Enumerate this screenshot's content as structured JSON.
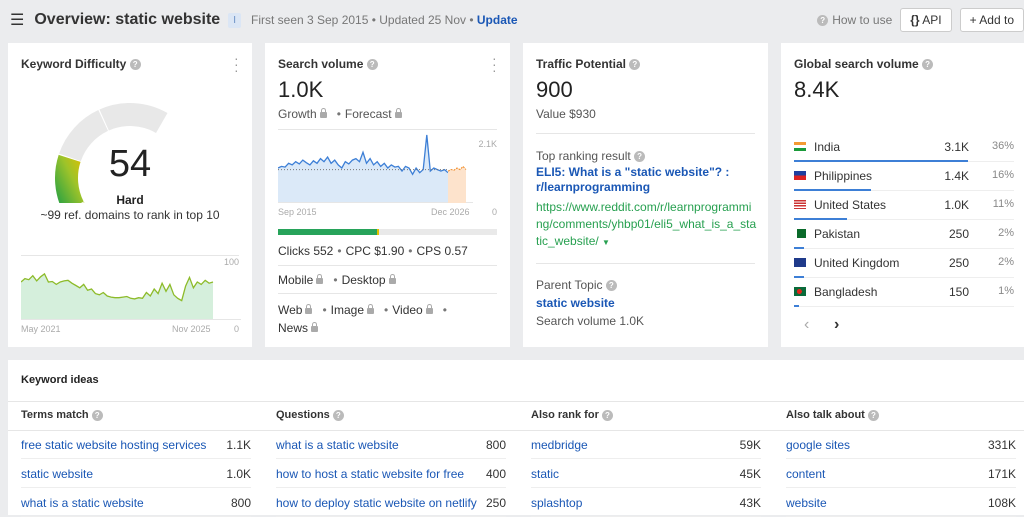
{
  "header": {
    "title": "Overview: static website",
    "badge": "I",
    "first_seen": "First seen 3 Sep 2015",
    "updated": "Updated 25 Nov",
    "update_link": "Update",
    "how_to_use": "How to use",
    "api": "API",
    "add_to": "Add to"
  },
  "kd": {
    "title": "Keyword Difficulty",
    "value": "54",
    "label": "Hard",
    "note": "~99 ref. domains to rank in top 10",
    "score": 54,
    "chart": {
      "type": "area",
      "y_max_label": "100",
      "y_min_label": "0",
      "x_start": "May 2021",
      "x_end": "Nov 2025",
      "ylim": [
        0,
        100
      ],
      "values": [
        62,
        68,
        66,
        73,
        64,
        71,
        76,
        62,
        63,
        58,
        62,
        64,
        65,
        60,
        56,
        52,
        58,
        48,
        50,
        42,
        40,
        44,
        38,
        36,
        35,
        35,
        36,
        37,
        34,
        33,
        35,
        34,
        44,
        38,
        50,
        42,
        60,
        46,
        58,
        40,
        34,
        30,
        55,
        70,
        52,
        62,
        58,
        65,
        60,
        62
      ]
    }
  },
  "sv": {
    "title": "Search volume",
    "value": "1.0K",
    "growth": "Growth",
    "forecast": "Forecast",
    "chart": {
      "type": "area",
      "y_max_label": "2.1K",
      "y_min_label": "0",
      "x_start": "Sep 2015",
      "x_end": "Dec 2026",
      "ylim": [
        0,
        2100
      ],
      "average": 1000,
      "values": [
        1050,
        1100,
        1080,
        1200,
        1150,
        1250,
        1180,
        1300,
        1220,
        1150,
        1280,
        1200,
        1350,
        1250,
        1400,
        1200,
        1300,
        1150,
        1050,
        1250,
        1180,
        1300,
        1350,
        1250,
        1550,
        1200,
        1350,
        1150,
        1250,
        1100,
        1200,
        1050,
        1150,
        1080,
        1100,
        950,
        1100,
        1050,
        850,
        1050,
        900,
        1000,
        2100,
        950,
        1050,
        1000,
        950,
        1000,
        900
      ],
      "forecast_values": [
        950,
        1000,
        980,
        1050,
        1000,
        1100,
        1000
      ]
    },
    "clicks_share": 0.46,
    "clicks": "Clicks 552",
    "cpc": "CPC $1.90",
    "cps": "CPS 0.57",
    "mobile": "Mobile",
    "desktop": "Desktop",
    "web": "Web",
    "image": "Image",
    "video": "Video",
    "news": "News"
  },
  "tp": {
    "title": "Traffic Potential",
    "value": "900",
    "value_label": "Value $930",
    "top_result_label": "Top ranking result",
    "top_result_title": "ELI5: What is a \"static website\"? : r/learnprogramming",
    "top_result_url": "https://www.reddit.com/r/learnprogramming/comments/yhbp01/eli5_what_is_a_static_website/",
    "parent_label": "Parent Topic",
    "parent": "static website",
    "parent_volume": "Search volume 1.0K"
  },
  "gsv": {
    "title": "Global search volume",
    "value": "8.4K",
    "countries": [
      {
        "name": "India",
        "volume": "3.1K",
        "pct": "36%",
        "share": 36,
        "flag": "india"
      },
      {
        "name": "Philippines",
        "volume": "1.4K",
        "pct": "16%",
        "share": 16,
        "flag": "philippines"
      },
      {
        "name": "United States",
        "volume": "1.0K",
        "pct": "11%",
        "share": 11,
        "flag": "us"
      },
      {
        "name": "Pakistan",
        "volume": "250",
        "pct": "2%",
        "share": 2,
        "flag": "pakistan"
      },
      {
        "name": "United Kingdom",
        "volume": "250",
        "pct": "2%",
        "share": 2,
        "flag": "uk"
      },
      {
        "name": "Bangladesh",
        "volume": "150",
        "pct": "1%",
        "share": 1,
        "flag": "bangladesh"
      }
    ]
  },
  "ideas": {
    "title": "Keyword ideas",
    "columns": [
      {
        "title": "Terms match",
        "rows": [
          {
            "kw": "free static website hosting services",
            "v": "1.1K"
          },
          {
            "kw": "static website",
            "v": "1.0K"
          },
          {
            "kw": "what is a static website",
            "v": "800"
          }
        ]
      },
      {
        "title": "Questions",
        "rows": [
          {
            "kw": "what is a static website",
            "v": "800"
          },
          {
            "kw": "how to host a static website for free",
            "v": "400"
          },
          {
            "kw": "how to deploy static website on netlify",
            "v": "250"
          }
        ]
      },
      {
        "title": "Also rank for",
        "rows": [
          {
            "kw": "medbridge",
            "v": "59K"
          },
          {
            "kw": "static",
            "v": "45K"
          },
          {
            "kw": "splashtop",
            "v": "43K"
          }
        ]
      },
      {
        "title": "Also talk about",
        "rows": [
          {
            "kw": "google sites",
            "v": "331K"
          },
          {
            "kw": "content",
            "v": "171K"
          },
          {
            "kw": "website",
            "v": "108K"
          }
        ]
      }
    ]
  }
}
